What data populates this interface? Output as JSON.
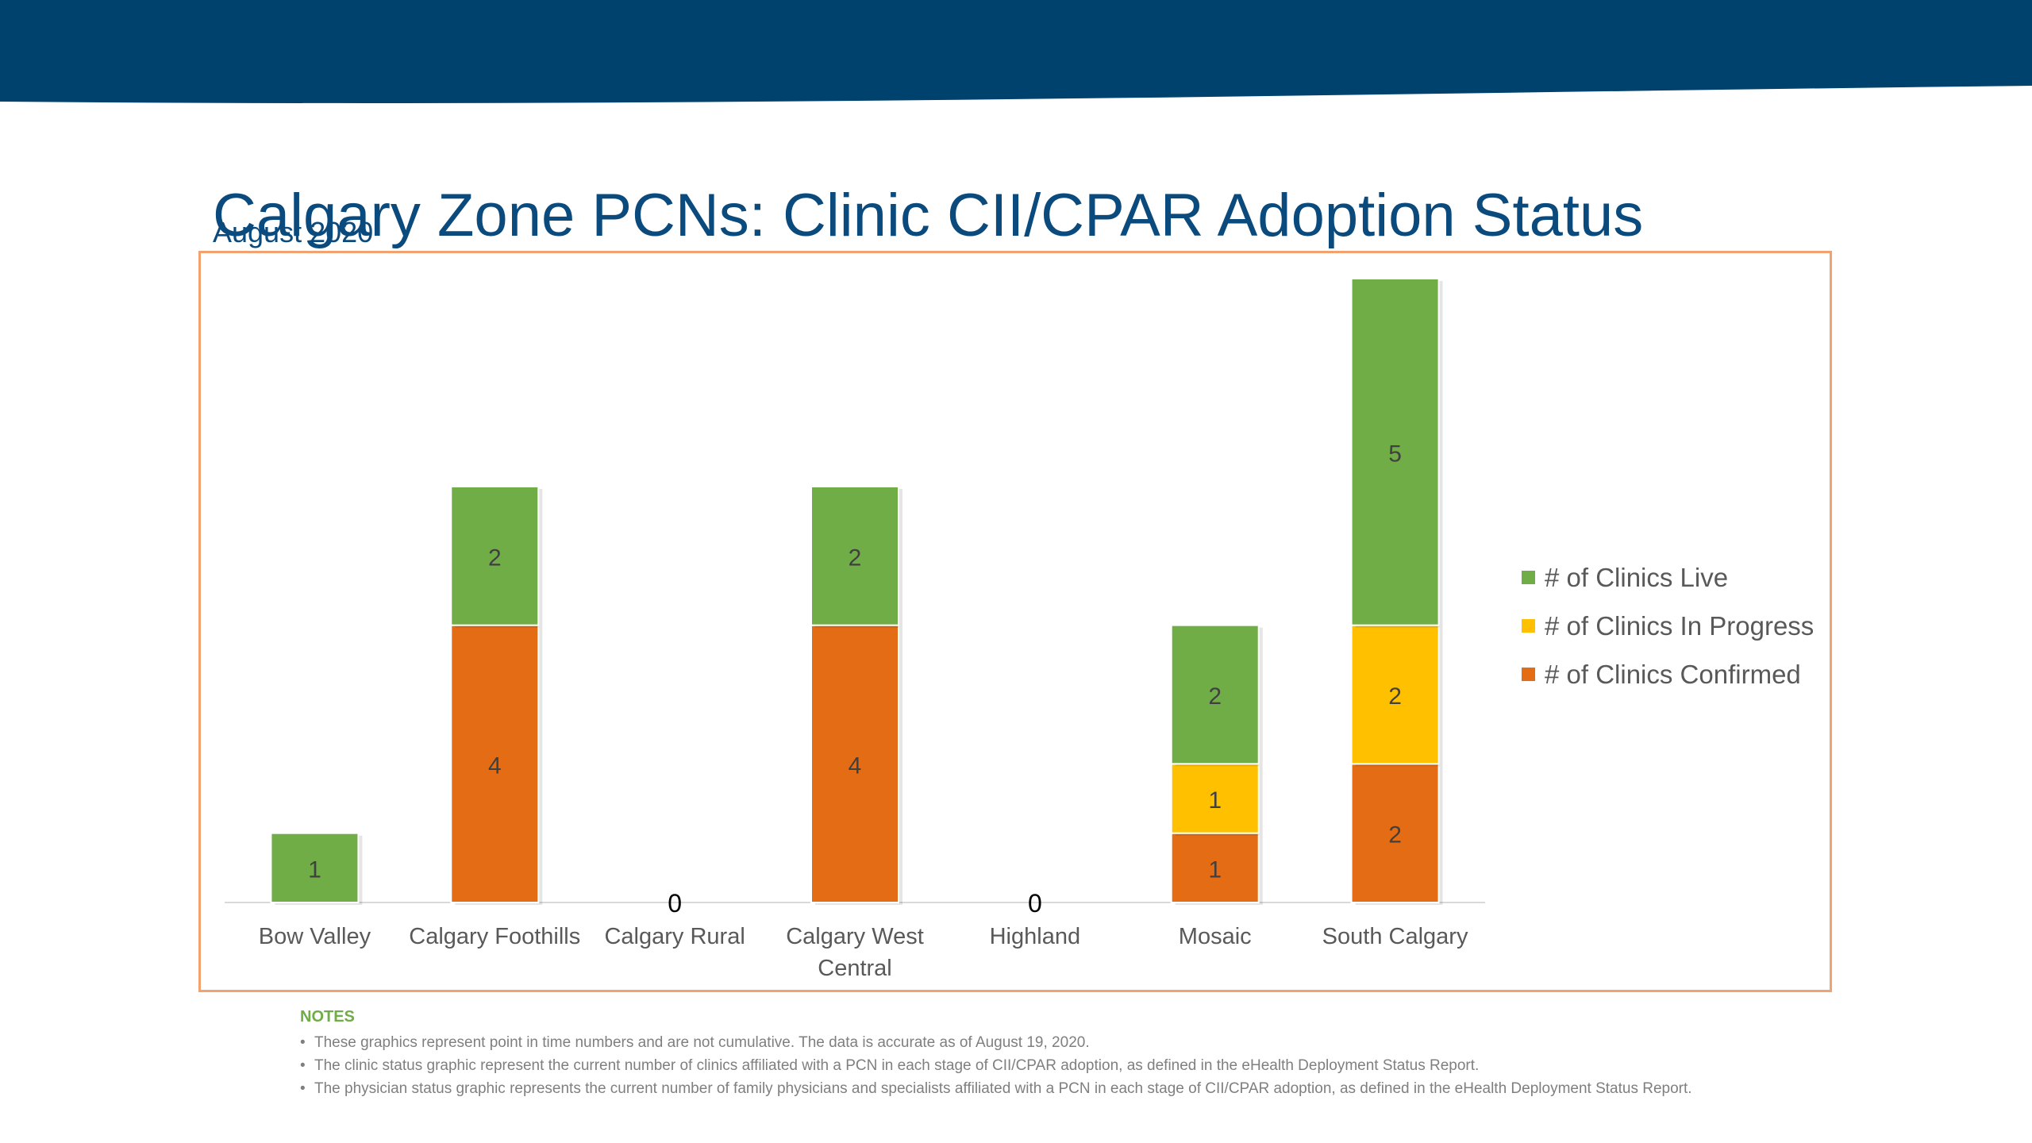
{
  "header": {
    "title": "Calgary Zone PCNs: Clinic CII/CPAR Adoption Status",
    "subtitle": "August 2020"
  },
  "colors": {
    "banner_navy": "#00426e",
    "banner_gold": "#e0c22a",
    "title_blue": "#0b4a7c",
    "frame_border": "#f2a170",
    "notes_green": "#70ad47",
    "notes_gray": "#7f7f7f"
  },
  "chart_data": {
    "type": "stacked bar",
    "categories": [
      "Bow Valley",
      "Calgary Foothills",
      "Calgary Rural",
      "Calgary West Central",
      "Highland",
      "Mosaic",
      "South Calgary"
    ],
    "series": [
      {
        "name": "# of Clinics Confirmed",
        "color": "#e46c14",
        "values": [
          0,
          4,
          0,
          4,
          0,
          1,
          2
        ]
      },
      {
        "name": "# of Clinics In Progress",
        "color": "#ffc000",
        "values": [
          0,
          0,
          0,
          0,
          0,
          1,
          2
        ]
      },
      {
        "name": "# of Clinics Live",
        "color": "#70ad47",
        "values": [
          1,
          2,
          0,
          2,
          0,
          2,
          5
        ]
      }
    ],
    "zero_labels": [
      "Calgary Rural",
      "Highland"
    ],
    "zero_label_text": "0",
    "ylim": [
      0,
      9
    ],
    "legend_order": [
      "# of Clinics Live",
      "# of Clinics In Progress",
      "# of Clinics Confirmed"
    ],
    "legend_position": "right",
    "grid": false,
    "y_axis_visible": false
  },
  "notes": {
    "heading": "NOTES",
    "items": [
      "These graphics represent point in time numbers and are not cumulative. The data is accurate as of August 19, 2020.",
      "The clinic status graphic represent the current number of clinics affiliated with a PCN in each stage of CII/CPAR adoption, as defined in the eHealth Deployment Status Report.",
      "The physician status graphic represents the current number of family physicians and specialists affiliated with a PCN in each stage of CII/CPAR adoption, as defined in the eHealth Deployment Status Report."
    ]
  }
}
